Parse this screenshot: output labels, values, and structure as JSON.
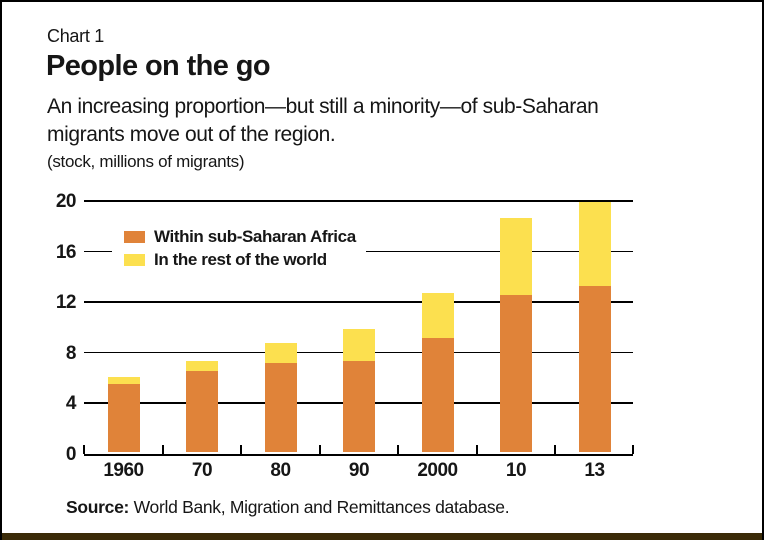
{
  "frame": {
    "chart_label": "Chart 1",
    "title": "People on the go",
    "subtitle_lines": {
      "0": "An increasing proportion—but still a minority—of sub-Saharan",
      "1": "migrants move out of the region."
    },
    "units": "(stock, millions of migrants)",
    "source_label": "Source:",
    "source_text": " World Bank, Migration and Remittances database."
  },
  "chart_data": {
    "type": "bar",
    "stacked": true,
    "title": "People on the go",
    "subtitle": "An increasing proportion—but still a minority—of sub-Saharan migrants move out of the region.",
    "ylabel": "(stock, millions of migrants)",
    "categories": [
      "1960",
      "70",
      "80",
      "90",
      "2000",
      "10",
      "13"
    ],
    "series": [
      {
        "name": "Within sub-Saharan Africa",
        "color": "#E08339",
        "values": [
          5.4,
          6.4,
          7.0,
          7.2,
          9.0,
          12.4,
          13.1
        ]
      },
      {
        "name": "In the rest of the world",
        "color": "#FCE04F",
        "values": [
          0.5,
          0.8,
          1.6,
          2.5,
          3.6,
          6.1,
          6.7
        ]
      }
    ],
    "ylim": [
      0,
      20
    ],
    "yticks": [
      0,
      4,
      8,
      12,
      16,
      20
    ],
    "grid": true,
    "legend_position": "upper-left-inside",
    "source": "World Bank, Migration and Remittances database."
  },
  "colors": {
    "within_bar": "#E08339",
    "rest_bar": "#FCE04F",
    "gridline": "#000000",
    "bottom_rule": "#3B2B08",
    "background": "#FFFFFF",
    "text": "#161616"
  }
}
